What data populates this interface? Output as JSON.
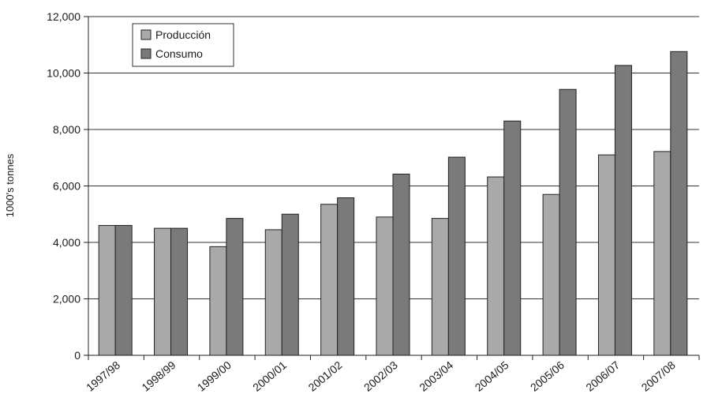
{
  "chart_data": {
    "type": "bar",
    "title": "",
    "xlabel": "",
    "ylabel": "1000's tonnes",
    "ylim": [
      0,
      12000
    ],
    "yticks": [
      0,
      2000,
      4000,
      6000,
      8000,
      10000,
      12000
    ],
    "ytick_labels": [
      "0",
      "2,000",
      "4,000",
      "6,000",
      "8,000",
      "10,000",
      "12,000"
    ],
    "grid": true,
    "legend_position": "top-left",
    "categories": [
      "1997/98",
      "1998/99",
      "1999/00",
      "2000/01",
      "2001/02",
      "2002/03",
      "2003/04",
      "2004/05",
      "2005/06",
      "2006/07",
      "2007/08"
    ],
    "series": [
      {
        "name": "Producción",
        "color": "#a9a9a9",
        "values": [
          4600,
          4500,
          3850,
          4450,
          5350,
          4900,
          4850,
          6320,
          5700,
          7100,
          7220
        ]
      },
      {
        "name": "Consumo",
        "color": "#7a7a7a",
        "values": [
          4600,
          4500,
          4850,
          5000,
          5580,
          6420,
          7020,
          8300,
          9420,
          10270,
          10760
        ]
      }
    ]
  }
}
